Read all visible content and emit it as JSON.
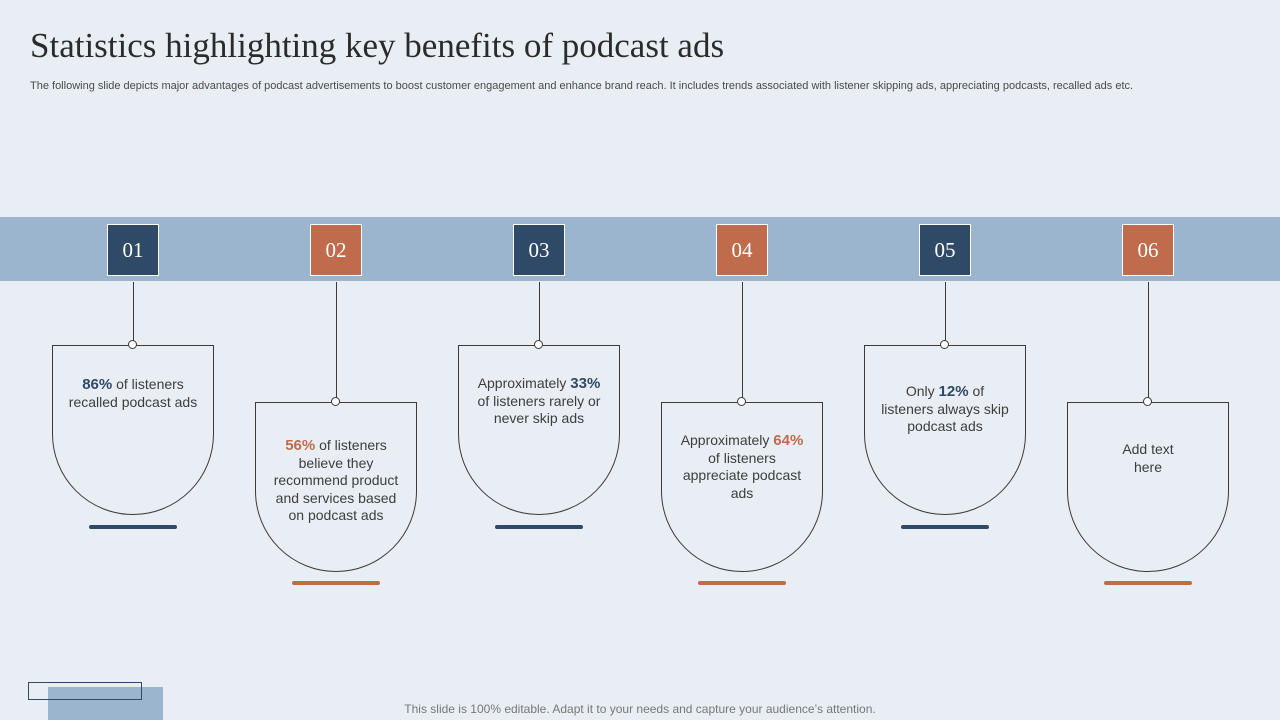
{
  "title": "Statistics highlighting key benefits of podcast ads",
  "subtitle": "The following slide depicts major advantages of podcast advertisements to boost customer engagement and enhance brand reach. It includes trends associated with listener skipping ads, appreciating podcasts, recalled ads etc.",
  "colors": {
    "dark": "#2f4a66",
    "orange": "#c06b4c",
    "band": "#9ab5cd",
    "background": "#e9eef4"
  },
  "steps": [
    {
      "number": "01",
      "pre": "",
      "highlight": "86%",
      "post": " of listeners recalled podcast ads",
      "color": "dark"
    },
    {
      "number": "02",
      "pre": "",
      "highlight": "56%",
      "post": " of listeners believe they recommend product and services based on podcast ads",
      "color": "orange"
    },
    {
      "number": "03",
      "pre": "Approximately ",
      "highlight": "33%",
      "post": " of listeners rarely or never skip ads",
      "color": "dark"
    },
    {
      "number": "04",
      "pre": "Approximately ",
      "highlight": "64%",
      "post": " of listeners appreciate podcast ads",
      "color": "orange"
    },
    {
      "number": "05",
      "pre": "Only ",
      "highlight": "12%",
      "post": " of listeners always skip podcast ads",
      "color": "dark"
    },
    {
      "number": "06",
      "pre": "Add text here",
      "highlight": "",
      "post": "",
      "color": "orange"
    }
  ],
  "footer": "This slide is 100% editable. Adapt it to your needs and capture your audience’s attention."
}
